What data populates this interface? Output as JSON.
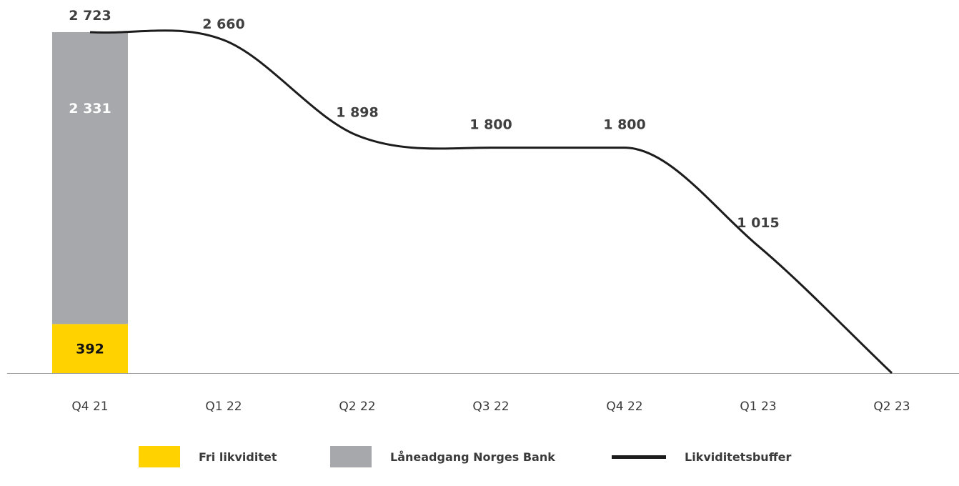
{
  "colors": {
    "fri": "#ffd200",
    "laneadgang": "#a7a8ab",
    "line": "#1c1c1c",
    "axis": "#9c9c9c"
  },
  "chart_data": {
    "type": "bar",
    "categories": [
      "Q4 21",
      "Q1 22",
      "Q2 22",
      "Q3 22",
      "Q4 22",
      "Q1 23",
      "Q2 23"
    ],
    "stacked_bar": {
      "category": "Q4 21",
      "segments": [
        {
          "name": "Fri likviditet",
          "value": 392,
          "label": "392",
          "color": "#ffd200"
        },
        {
          "name": "Låneadgang Norges Bank",
          "value": 2331,
          "label": "2 331",
          "color": "#a7a8ab"
        }
      ]
    },
    "series": [
      {
        "name": "Likviditetsbuffer",
        "type": "line",
        "values": [
          2723,
          2660,
          1898,
          1800,
          1800,
          1015,
          0
        ],
        "labels": [
          "2 723",
          "2 660",
          "1 898",
          "1 800",
          "1 800",
          "1 015",
          ""
        ]
      }
    ],
    "ylim": [
      0,
      2723
    ],
    "grid": false,
    "legend_position": "bottom"
  },
  "legend": [
    {
      "label": "Fri likviditet",
      "kind": "swatch",
      "color": "#ffd200"
    },
    {
      "label": "Låneadgang Norges Bank",
      "kind": "swatch",
      "color": "#a7a8ab"
    },
    {
      "label": "Likviditetsbuffer",
      "kind": "line",
      "color": "#1c1c1c"
    }
  ]
}
